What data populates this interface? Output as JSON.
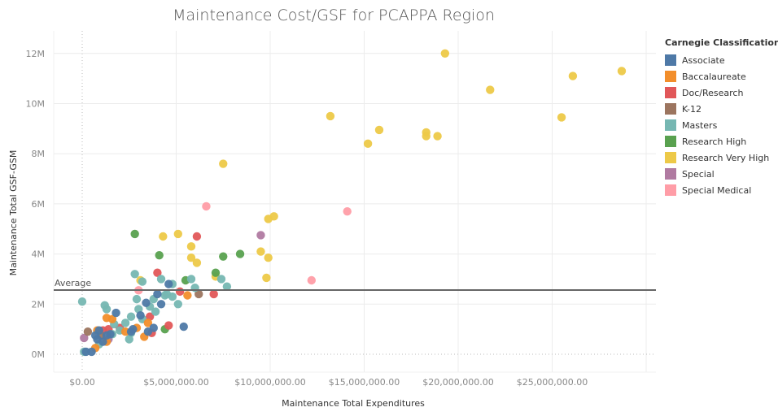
{
  "chart_data": {
    "type": "scatter",
    "title": "Maintenance Cost/GSF for PCAPPA Region",
    "xlabel": "Maintenance Total Expenditures",
    "ylabel": "Maintenance Total GSF-GSM",
    "xlim": [
      -1500000,
      30500000
    ],
    "ylim": [
      -700000,
      12700000
    ],
    "x_ticks": [
      0,
      5000000,
      10000000,
      15000000,
      20000000,
      25000000,
      30000000
    ],
    "x_tick_labels": [
      "$0.00",
      "$5,000,000.00",
      "$10,000,000.00",
      "$15,000,000.00",
      "$20,000,000.00",
      "$25,000,000.00",
      ""
    ],
    "y_ticks": [
      0,
      2000000,
      4000000,
      6000000,
      8000000,
      10000000,
      12000000
    ],
    "y_tick_labels": [
      "0M",
      "2M",
      "4M",
      "6M",
      "8M",
      "10M",
      "12M"
    ],
    "grid": true,
    "reference_line": {
      "label": "Average",
      "value": 2560000
    },
    "legend": {
      "title": "Carnegie Classification",
      "placement": "right",
      "entries": [
        {
          "name": "Associate",
          "color": "#4e79a7"
        },
        {
          "name": "Baccalaureate",
          "color": "#f28e2b"
        },
        {
          "name": "Doc/Research",
          "color": "#e15759"
        },
        {
          "name": "K-12",
          "color": "#9c755f"
        },
        {
          "name": "Masters",
          "color": "#76b7b2"
        },
        {
          "name": "Research High",
          "color": "#59a14f"
        },
        {
          "name": "Research Very High",
          "color": "#edc948"
        },
        {
          "name": "Special",
          "color": "#b07aa1"
        },
        {
          "name": "Special Medical",
          "color": "#ff9da7"
        }
      ]
    },
    "series": [
      {
        "name": "Research Very High",
        "points": [
          [
            19300000,
            12000000
          ],
          [
            28700000,
            11300000
          ],
          [
            26100000,
            11100000
          ],
          [
            21700000,
            10550000
          ],
          [
            25500000,
            9450000
          ],
          [
            13200000,
            9500000
          ],
          [
            15800000,
            8950000
          ],
          [
            15200000,
            8400000
          ],
          [
            18300000,
            8850000
          ],
          [
            18300000,
            8700000
          ],
          [
            18900000,
            8700000
          ],
          [
            7500000,
            7600000
          ],
          [
            10200000,
            5500000
          ],
          [
            9900000,
            5400000
          ],
          [
            5100000,
            4800000
          ],
          [
            4300000,
            4700000
          ],
          [
            5800000,
            4300000
          ],
          [
            6100000,
            3650000
          ],
          [
            5800000,
            3850000
          ],
          [
            9500000,
            4100000
          ],
          [
            9900000,
            3850000
          ],
          [
            9800000,
            3050000
          ],
          [
            3100000,
            2950000
          ],
          [
            7100000,
            3100000
          ]
        ]
      },
      {
        "name": "Research High",
        "points": [
          [
            2800000,
            4800000
          ],
          [
            4100000,
            3950000
          ],
          [
            7500000,
            3900000
          ],
          [
            8400000,
            4000000
          ],
          [
            7100000,
            3250000
          ],
          [
            5500000,
            2950000
          ],
          [
            4400000,
            1000000
          ]
        ]
      },
      {
        "name": "Doc/Research",
        "points": [
          [
            6100000,
            4700000
          ],
          [
            4000000,
            3250000
          ],
          [
            7000000,
            2400000
          ],
          [
            5200000,
            2500000
          ],
          [
            3700000,
            850000
          ],
          [
            4600000,
            1150000
          ],
          [
            1400000,
            1000000
          ],
          [
            2000000,
            1050000
          ],
          [
            3600000,
            1500000
          ],
          [
            1100000,
            950000
          ]
        ]
      },
      {
        "name": "Special Medical",
        "points": [
          [
            6600000,
            5900000
          ],
          [
            14100000,
            5700000
          ],
          [
            12200000,
            2950000
          ],
          [
            3000000,
            2550000
          ]
        ]
      },
      {
        "name": "Special",
        "points": [
          [
            9500000,
            4750000
          ],
          [
            100000,
            650000
          ],
          [
            1400000,
            600000
          ]
        ]
      },
      {
        "name": "K-12",
        "points": [
          [
            6200000,
            2400000
          ],
          [
            300000,
            900000
          ],
          [
            1000000,
            750000
          ]
        ]
      },
      {
        "name": "Masters",
        "points": [
          [
            0,
            2100000
          ],
          [
            2800000,
            3200000
          ],
          [
            3200000,
            2900000
          ],
          [
            4200000,
            3000000
          ],
          [
            5800000,
            3000000
          ],
          [
            7400000,
            3000000
          ],
          [
            7700000,
            2700000
          ],
          [
            6000000,
            2650000
          ],
          [
            4800000,
            2800000
          ],
          [
            4400000,
            2350000
          ],
          [
            4800000,
            2300000
          ],
          [
            3800000,
            2200000
          ],
          [
            3600000,
            1900000
          ],
          [
            3900000,
            1700000
          ],
          [
            2900000,
            2200000
          ],
          [
            3000000,
            1800000
          ],
          [
            2600000,
            1500000
          ],
          [
            2300000,
            1250000
          ],
          [
            1200000,
            1950000
          ],
          [
            1300000,
            1800000
          ],
          [
            2600000,
            850000
          ],
          [
            1600000,
            800000
          ],
          [
            2000000,
            950000
          ],
          [
            1700000,
            1200000
          ],
          [
            5100000,
            2000000
          ],
          [
            100000,
            100000
          ],
          [
            900000,
            400000
          ],
          [
            2500000,
            600000
          ],
          [
            4500000,
            2400000
          ],
          [
            3200000,
            1400000
          ]
        ]
      },
      {
        "name": "Baccalaureate",
        "points": [
          [
            5600000,
            2350000
          ],
          [
            1300000,
            1450000
          ],
          [
            2900000,
            1050000
          ],
          [
            3500000,
            1250000
          ],
          [
            2300000,
            900000
          ],
          [
            1300000,
            500000
          ],
          [
            700000,
            250000
          ],
          [
            1600000,
            1400000
          ],
          [
            800000,
            950000
          ],
          [
            3300000,
            700000
          ]
        ]
      },
      {
        "name": "Associate",
        "points": [
          [
            4000000,
            2400000
          ],
          [
            4600000,
            2800000
          ],
          [
            4200000,
            2000000
          ],
          [
            3400000,
            2050000
          ],
          [
            1800000,
            1650000
          ],
          [
            3100000,
            1550000
          ],
          [
            5400000,
            1100000
          ],
          [
            3500000,
            900000
          ],
          [
            2600000,
            900000
          ],
          [
            1500000,
            800000
          ],
          [
            900000,
            950000
          ],
          [
            800000,
            600000
          ],
          [
            200000,
            100000
          ],
          [
            500000,
            100000
          ],
          [
            1100000,
            500000
          ],
          [
            1300000,
            750000
          ],
          [
            700000,
            750000
          ],
          [
            2700000,
            1000000
          ],
          [
            3800000,
            1050000
          ]
        ]
      }
    ]
  }
}
